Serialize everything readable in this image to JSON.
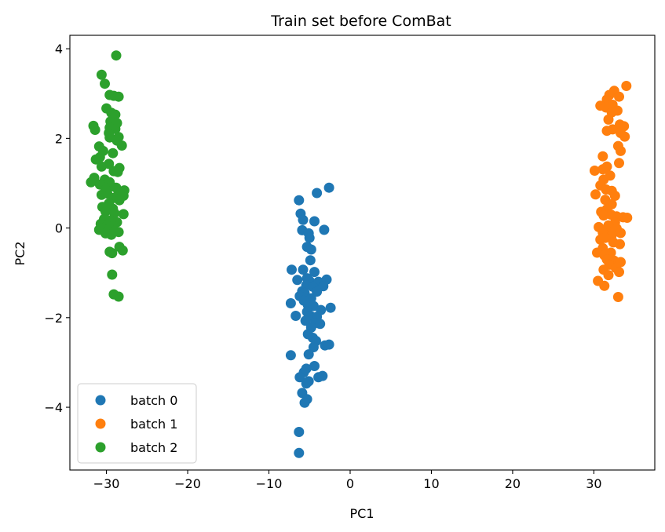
{
  "chart_data": {
    "type": "scatter",
    "title": "Train set before ComBat",
    "xlabel": "PC1",
    "ylabel": "PC2",
    "xlim": [
      -34.5,
      37.5
    ],
    "ylim": [
      -5.4,
      4.3
    ],
    "xticks": [
      -30,
      -20,
      -10,
      0,
      10,
      20,
      30
    ],
    "yticks": [
      -4,
      -2,
      0,
      2,
      4
    ],
    "xtick_labels": [
      "−30",
      "−20",
      "−10",
      "0",
      "10",
      "20",
      "30"
    ],
    "ytick_labels": [
      "−4",
      "−2",
      "0",
      "2",
      "4"
    ],
    "grid": false,
    "legend_position": "lower-left",
    "series": [
      {
        "name": "batch 0",
        "color": "#1f77b4",
        "points": [
          [
            -6.3,
            0.62
          ],
          [
            -4.1,
            0.78
          ],
          [
            -2.6,
            0.9
          ],
          [
            -6.1,
            0.32
          ],
          [
            -5.8,
            0.18
          ],
          [
            -4.4,
            0.15
          ],
          [
            -5.9,
            -0.05
          ],
          [
            -3.2,
            -0.04
          ],
          [
            -5.1,
            -0.12
          ],
          [
            -5.0,
            -0.22
          ],
          [
            -5.3,
            -0.42
          ],
          [
            -4.8,
            -0.48
          ],
          [
            -4.9,
            -0.72
          ],
          [
            -7.2,
            -0.93
          ],
          [
            -5.8,
            -0.93
          ],
          [
            -4.4,
            -0.98
          ],
          [
            -5.3,
            -1.12
          ],
          [
            -6.5,
            -1.16
          ],
          [
            -5.0,
            -1.18
          ],
          [
            -3.9,
            -1.2
          ],
          [
            -2.9,
            -1.15
          ],
          [
            -5.4,
            -1.28
          ],
          [
            -4.6,
            -1.31
          ],
          [
            -3.3,
            -1.3
          ],
          [
            -5.9,
            -1.41
          ],
          [
            -5.6,
            -1.45
          ],
          [
            -4.1,
            -1.42
          ],
          [
            -6.2,
            -1.52
          ],
          [
            -4.8,
            -1.57
          ],
          [
            -5.7,
            -1.62
          ],
          [
            -7.3,
            -1.68
          ],
          [
            -5.2,
            -1.72
          ],
          [
            -4.5,
            -1.74
          ],
          [
            -2.4,
            -1.78
          ],
          [
            -5.3,
            -1.87
          ],
          [
            -3.6,
            -1.83
          ],
          [
            -6.7,
            -1.96
          ],
          [
            -4.9,
            -1.96
          ],
          [
            -4.1,
            -1.98
          ],
          [
            -5.5,
            -2.07
          ],
          [
            -4.3,
            -2.12
          ],
          [
            -3.7,
            -2.14
          ],
          [
            -4.8,
            -2.22
          ],
          [
            -5.2,
            -2.37
          ],
          [
            -4.6,
            -2.45
          ],
          [
            -4.2,
            -2.52
          ],
          [
            -3.1,
            -2.62
          ],
          [
            -2.6,
            -2.6
          ],
          [
            -4.5,
            -2.66
          ],
          [
            -7.3,
            -2.84
          ],
          [
            -5.1,
            -2.82
          ],
          [
            -4.4,
            -3.08
          ],
          [
            -5.4,
            -3.14
          ],
          [
            -5.7,
            -3.22
          ],
          [
            -6.2,
            -3.33
          ],
          [
            -3.9,
            -3.33
          ],
          [
            -3.4,
            -3.3
          ],
          [
            -5.1,
            -3.42
          ],
          [
            -5.4,
            -3.47
          ],
          [
            -5.9,
            -3.68
          ],
          [
            -5.3,
            -3.82
          ],
          [
            -5.6,
            -3.9
          ],
          [
            -6.3,
            -4.55
          ],
          [
            -6.3,
            -5.02
          ]
        ]
      },
      {
        "name": "batch 1",
        "color": "#ff7f0e",
        "points": [
          [
            34.0,
            3.17
          ],
          [
            32.5,
            3.06
          ],
          [
            31.9,
            2.97
          ],
          [
            33.1,
            2.93
          ],
          [
            31.6,
            2.87
          ],
          [
            32.3,
            2.75
          ],
          [
            30.8,
            2.73
          ],
          [
            31.5,
            2.69
          ],
          [
            32.9,
            2.62
          ],
          [
            32.2,
            2.58
          ],
          [
            31.8,
            2.42
          ],
          [
            33.2,
            2.31
          ],
          [
            33.7,
            2.27
          ],
          [
            32.3,
            2.2
          ],
          [
            31.6,
            2.17
          ],
          [
            33.3,
            2.12
          ],
          [
            33.8,
            2.04
          ],
          [
            33.0,
            1.83
          ],
          [
            33.3,
            1.72
          ],
          [
            31.1,
            1.6
          ],
          [
            33.1,
            1.45
          ],
          [
            31.6,
            1.37
          ],
          [
            31.1,
            1.31
          ],
          [
            30.1,
            1.28
          ],
          [
            32.0,
            1.17
          ],
          [
            31.2,
            1.08
          ],
          [
            30.8,
            0.95
          ],
          [
            31.5,
            0.86
          ],
          [
            32.2,
            0.83
          ],
          [
            30.2,
            0.75
          ],
          [
            32.6,
            0.72
          ],
          [
            31.4,
            0.63
          ],
          [
            32.2,
            0.53
          ],
          [
            31.6,
            0.42
          ],
          [
            30.9,
            0.36
          ],
          [
            32.1,
            0.3
          ],
          [
            31.2,
            0.28
          ],
          [
            32.8,
            0.26
          ],
          [
            33.6,
            0.24
          ],
          [
            34.1,
            0.23
          ],
          [
            32.6,
            0.12
          ],
          [
            31.8,
            0.06
          ],
          [
            30.6,
            0.02
          ],
          [
            32.8,
            -0.01
          ],
          [
            31.6,
            -0.06
          ],
          [
            31.1,
            -0.1
          ],
          [
            33.3,
            -0.11
          ],
          [
            32.2,
            -0.16
          ],
          [
            31.4,
            -0.22
          ],
          [
            30.8,
            -0.26
          ],
          [
            32.4,
            -0.32
          ],
          [
            33.2,
            -0.36
          ],
          [
            31.1,
            -0.45
          ],
          [
            30.4,
            -0.55
          ],
          [
            32.1,
            -0.55
          ],
          [
            31.3,
            -0.61
          ],
          [
            31.6,
            -0.7
          ],
          [
            32.5,
            -0.73
          ],
          [
            33.3,
            -0.76
          ],
          [
            31.9,
            -0.82
          ],
          [
            32.7,
            -0.89
          ],
          [
            31.2,
            -0.93
          ],
          [
            33.1,
            -0.98
          ],
          [
            31.8,
            -1.05
          ],
          [
            30.5,
            -1.18
          ],
          [
            31.3,
            -1.29
          ],
          [
            33.0,
            -1.54
          ]
        ]
      },
      {
        "name": "batch 2",
        "color": "#2ca02c",
        "points": [
          [
            -28.8,
            3.85
          ],
          [
            -30.6,
            3.42
          ],
          [
            -30.2,
            3.22
          ],
          [
            -29.6,
            2.97
          ],
          [
            -29.1,
            2.95
          ],
          [
            -28.5,
            2.93
          ],
          [
            -30.0,
            2.67
          ],
          [
            -29.4,
            2.57
          ],
          [
            -28.9,
            2.53
          ],
          [
            -29.5,
            2.38
          ],
          [
            -28.7,
            2.34
          ],
          [
            -31.6,
            2.28
          ],
          [
            -29.6,
            2.24
          ],
          [
            -28.9,
            2.21
          ],
          [
            -31.4,
            2.19
          ],
          [
            -29.7,
            2.12
          ],
          [
            -28.5,
            2.03
          ],
          [
            -29.6,
            2.02
          ],
          [
            -28.7,
            1.95
          ],
          [
            -30.9,
            1.82
          ],
          [
            -28.1,
            1.84
          ],
          [
            -30.4,
            1.72
          ],
          [
            -29.2,
            1.67
          ],
          [
            -30.8,
            1.58
          ],
          [
            -31.3,
            1.53
          ],
          [
            -29.7,
            1.43
          ],
          [
            -30.6,
            1.37
          ],
          [
            -28.4,
            1.34
          ],
          [
            -29.1,
            1.27
          ],
          [
            -28.6,
            1.25
          ],
          [
            -31.5,
            1.12
          ],
          [
            -30.2,
            1.08
          ],
          [
            -31.9,
            1.02
          ],
          [
            -29.6,
            1.02
          ],
          [
            -30.8,
            0.97
          ],
          [
            -29.4,
            0.93
          ],
          [
            -28.8,
            0.9
          ],
          [
            -30.1,
            0.86
          ],
          [
            -27.8,
            0.84
          ],
          [
            -28.5,
            0.8
          ],
          [
            -29.9,
            0.77
          ],
          [
            -30.6,
            0.74
          ],
          [
            -27.9,
            0.72
          ],
          [
            -29.1,
            0.67
          ],
          [
            -28.4,
            0.62
          ],
          [
            -29.7,
            0.55
          ],
          [
            -30.5,
            0.47
          ],
          [
            -29.2,
            0.43
          ],
          [
            -30.1,
            0.37
          ],
          [
            -29.0,
            0.33
          ],
          [
            -27.9,
            0.31
          ],
          [
            -30.3,
            0.2
          ],
          [
            -29.5,
            0.17
          ],
          [
            -28.7,
            0.13
          ],
          [
            -30.7,
            0.09
          ],
          [
            -29.9,
            0.06
          ],
          [
            -29.2,
            0.05
          ],
          [
            -30.5,
            -0.01
          ],
          [
            -29.6,
            -0.02
          ],
          [
            -30.9,
            -0.04
          ],
          [
            -29.0,
            -0.06
          ],
          [
            -28.5,
            -0.09
          ],
          [
            -30.1,
            -0.12
          ],
          [
            -29.4,
            -0.15
          ],
          [
            -28.4,
            -0.42
          ],
          [
            -29.6,
            -0.53
          ],
          [
            -28.0,
            -0.5
          ],
          [
            -29.3,
            -0.56
          ],
          [
            -29.3,
            -1.04
          ],
          [
            -29.1,
            -1.48
          ],
          [
            -28.5,
            -1.53
          ]
        ]
      }
    ]
  }
}
